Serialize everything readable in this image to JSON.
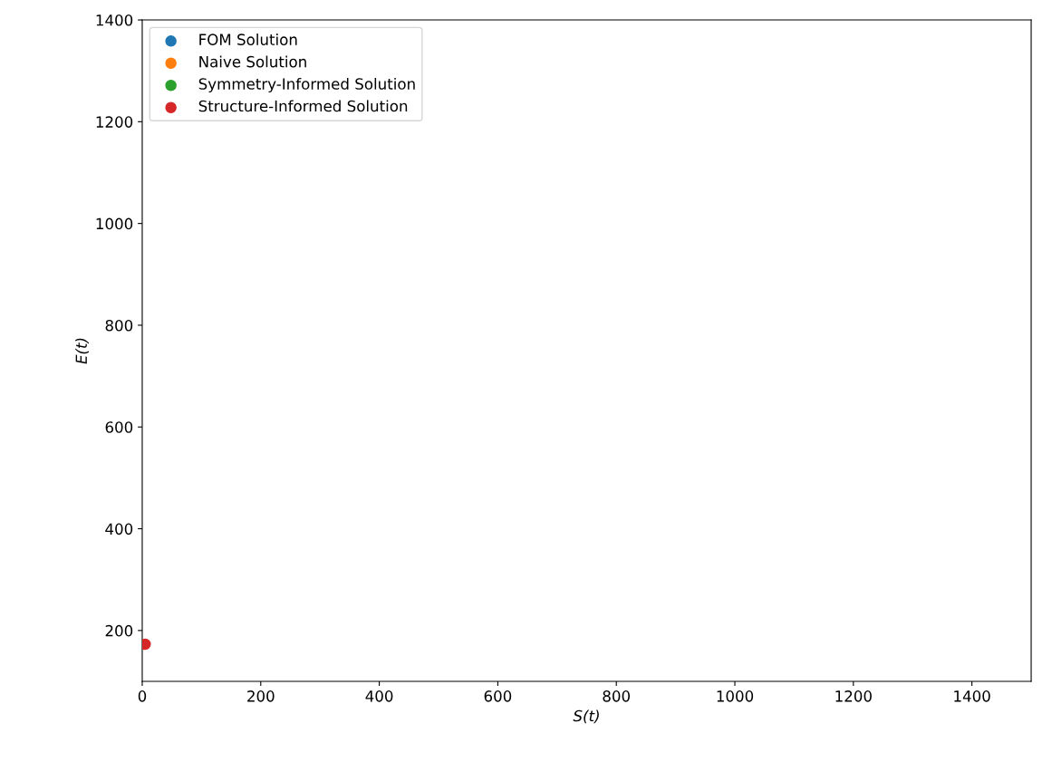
{
  "chart_data": {
    "type": "scatter",
    "xlabel": "S(t)",
    "ylabel": "E(t)",
    "xlim": [
      0,
      1500
    ],
    "xticks": [
      0,
      200,
      400,
      600,
      800,
      1000,
      1200,
      1400
    ],
    "ylim": [
      100,
      1400
    ],
    "yticks": [
      200,
      400,
      600,
      800,
      1000,
      1200,
      1400
    ],
    "legend": "top left",
    "grid": false,
    "marker": "circle",
    "series": [
      {
        "name": "FOM Solution",
        "color": "#1f77b4",
        "values": [
          null
        ]
      },
      {
        "name": "Naive Solution",
        "color": "#ff7f0e",
        "values": [
          null
        ]
      },
      {
        "name": "Symmetry-Informed Solution",
        "color": "#2ca02c",
        "values": [
          null
        ]
      },
      {
        "name": "Structure-Informed Solution",
        "color": "#d62728",
        "x": [
          5
        ],
        "values": [
          173
        ]
      }
    ]
  }
}
